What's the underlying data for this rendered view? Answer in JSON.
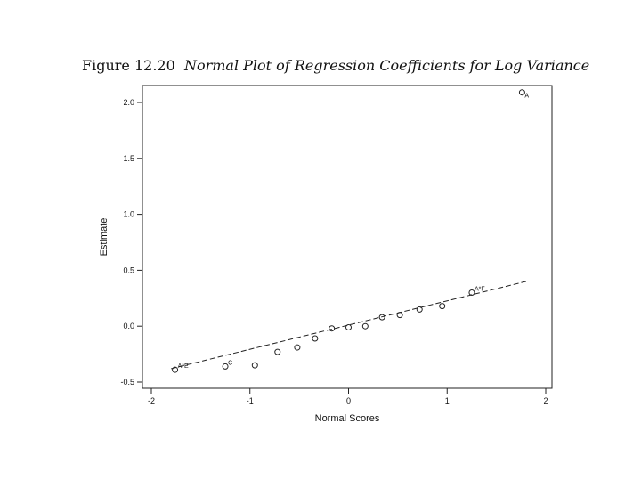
{
  "figure": {
    "number": "Figure 12.20",
    "caption": "Normal Plot of Regression Coefficients for Log Variance"
  },
  "chart_data": {
    "type": "scatter",
    "title": "Figure 12.20 Normal Plot of Regression Coefficients for Log Variance",
    "xlabel": "Normal Scores",
    "ylabel": "Estimate",
    "xlim": [
      -2,
      2
    ],
    "ylim": [
      -0.5,
      2.1
    ],
    "xticks": [
      -2,
      -1,
      0,
      1,
      2
    ],
    "yticks": [
      -0.5,
      0.0,
      0.5,
      1.0,
      1.5,
      2.0
    ],
    "xtick_labels": [
      "-2",
      "-1",
      "0",
      "1",
      "2"
    ],
    "ytick_labels": [
      "-0.5",
      "0.0",
      "0.5",
      "1.0",
      "1.5",
      "2.0"
    ],
    "grid": false,
    "legend": "none",
    "marker": "open circle",
    "points": [
      {
        "x": -1.76,
        "y": -0.39,
        "label": "A*E"
      },
      {
        "x": -1.25,
        "y": -0.36,
        "label": "C"
      },
      {
        "x": -0.95,
        "y": -0.35,
        "label": ""
      },
      {
        "x": -0.72,
        "y": -0.23,
        "label": ""
      },
      {
        "x": -0.52,
        "y": -0.19,
        "label": ""
      },
      {
        "x": -0.34,
        "y": -0.11,
        "label": ""
      },
      {
        "x": -0.17,
        "y": -0.02,
        "label": ""
      },
      {
        "x": 0.0,
        "y": -0.01,
        "label": ""
      },
      {
        "x": 0.17,
        "y": 0.0,
        "label": ""
      },
      {
        "x": 0.34,
        "y": 0.08,
        "label": ""
      },
      {
        "x": 0.52,
        "y": 0.1,
        "label": ""
      },
      {
        "x": 0.72,
        "y": 0.15,
        "label": ""
      },
      {
        "x": 0.95,
        "y": 0.18,
        "label": ""
      },
      {
        "x": 1.25,
        "y": 0.3,
        "label": "A*F"
      },
      {
        "x": 1.76,
        "y": 2.09,
        "label": "A"
      }
    ],
    "reference_line": {
      "style": "dashed",
      "x": [
        -1.8,
        1.8
      ],
      "y": [
        -0.38,
        0.4
      ]
    }
  }
}
